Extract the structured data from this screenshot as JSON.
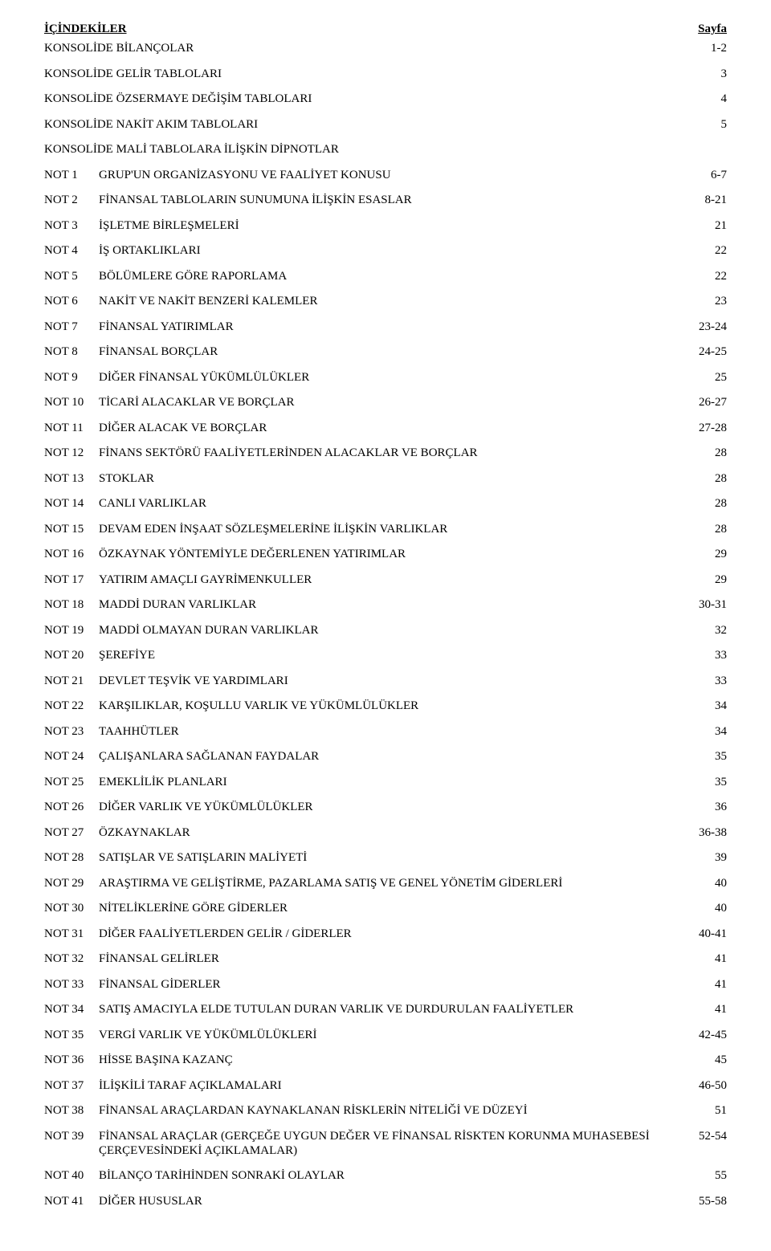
{
  "header": {
    "left": "İÇİNDEKİLER",
    "right": "Sayfa"
  },
  "first_items": [
    {
      "label": "",
      "title": "KONSOLİDE BİLANÇOLAR",
      "page": "1-2"
    },
    {
      "label": "",
      "title": "KONSOLİDE GELİR TABLOLARI",
      "page": "3"
    },
    {
      "label": "",
      "title": "KONSOLİDE ÖZSERMAYE DEĞİŞİM TABLOLARI",
      "page": "4"
    },
    {
      "label": "",
      "title": "KONSOLİDE NAKİT AKIM TABLOLARI",
      "page": "5"
    },
    {
      "label": "",
      "title": "KONSOLİDE MALİ TABLOLARA İLİŞKİN DİPNOTLAR",
      "page": ""
    }
  ],
  "notes": [
    {
      "label": "NOT 1",
      "title": "GRUP'UN ORGANİZASYONU VE FAALİYET KONUSU",
      "page": "6-7"
    },
    {
      "label": "NOT 2",
      "title": "FİNANSAL TABLOLARIN SUNUMUNA İLİŞKİN ESASLAR",
      "page": "8-21"
    },
    {
      "label": "NOT 3",
      "title": "İŞLETME BİRLEŞMELERİ",
      "page": "21"
    },
    {
      "label": "NOT 4",
      "title": "İŞ ORTAKLIKLARI",
      "page": "22"
    },
    {
      "label": "NOT 5",
      "title": "BÖLÜMLERE GÖRE RAPORLAMA",
      "page": "22"
    },
    {
      "label": "NOT 6",
      "title": "NAKİT VE NAKİT BENZERİ KALEMLER",
      "page": "23"
    },
    {
      "label": "NOT 7",
      "title": "FİNANSAL YATIRIMLAR",
      "page": "23-24"
    },
    {
      "label": "NOT 8",
      "title": "FİNANSAL BORÇLAR",
      "page": "24-25"
    },
    {
      "label": "NOT 9",
      "title": "DİĞER FİNANSAL YÜKÜMLÜLÜKLER",
      "page": "25"
    },
    {
      "label": "NOT 10",
      "title": "TİCARİ ALACAKLAR VE BORÇLAR",
      "page": "26-27"
    },
    {
      "label": "NOT 11",
      "title": "DİĞER ALACAK VE BORÇLAR",
      "page": "27-28"
    },
    {
      "label": "NOT 12",
      "title": "FİNANS SEKTÖRÜ FAALİYETLERİNDEN ALACAKLAR VE BORÇLAR",
      "page": "28"
    },
    {
      "label": "NOT 13",
      "title": "STOKLAR",
      "page": "28"
    },
    {
      "label": "NOT 14",
      "title": "CANLI VARLIKLAR",
      "page": "28"
    },
    {
      "label": "NOT 15",
      "title": "DEVAM EDEN İNŞAAT SÖZLEŞMELERİNE İLİŞKİN VARLIKLAR",
      "page": "28"
    },
    {
      "label": "NOT 16",
      "title": "ÖZKAYNAK YÖNTEMİYLE DEĞERLENEN YATIRIMLAR",
      "page": "29"
    },
    {
      "label": "NOT 17",
      "title": "YATIRIM AMAÇLI GAYRİMENKULLER",
      "page": "29"
    },
    {
      "label": "NOT 18",
      "title": "MADDİ DURAN VARLIKLAR",
      "page": "30-31"
    },
    {
      "label": "NOT 19",
      "title": "MADDİ OLMAYAN DURAN VARLIKLAR",
      "page": "32"
    },
    {
      "label": "NOT 20",
      "title": "ŞEREFİYE",
      "page": "33"
    },
    {
      "label": "NOT 21",
      "title": "DEVLET TEŞVİK VE YARDIMLARI",
      "page": "33"
    },
    {
      "label": "NOT 22",
      "title": "KARŞILIKLAR, KOŞULLU VARLIK VE YÜKÜMLÜLÜKLER",
      "page": "34"
    },
    {
      "label": "NOT 23",
      "title": "TAAHHÜTLER",
      "page": "34"
    },
    {
      "label": "NOT 24",
      "title": "ÇALIŞANLARA SAĞLANAN FAYDALAR",
      "page": "35"
    },
    {
      "label": "NOT 25",
      "title": "EMEKLİLİK PLANLARI",
      "page": "35"
    },
    {
      "label": "NOT 26",
      "title": "DİĞER VARLIK VE YÜKÜMLÜLÜKLER",
      "page": "36"
    },
    {
      "label": "NOT 27",
      "title": "ÖZKAYNAKLAR",
      "page": "36-38"
    },
    {
      "label": "NOT 28",
      "title": "SATIŞLAR VE SATIŞLARIN MALİYETİ",
      "page": "39"
    },
    {
      "label": "NOT 29",
      "title": "ARAŞTIRMA VE GELİŞTİRME, PAZARLAMA SATIŞ VE GENEL YÖNETİM GİDERLERİ",
      "page": "40"
    },
    {
      "label": "NOT 30",
      "title": "NİTELİKLERİNE GÖRE GİDERLER",
      "page": "40"
    },
    {
      "label": "NOT 31",
      "title": "DİĞER FAALİYETLERDEN GELİR / GİDERLER",
      "page": "40-41"
    },
    {
      "label": "NOT 32",
      "title": "FİNANSAL GELİRLER",
      "page": "41"
    },
    {
      "label": "NOT 33",
      "title": "FİNANSAL GİDERLER",
      "page": "41"
    },
    {
      "label": "NOT 34",
      "title": "SATIŞ AMACIYLA ELDE TUTULAN DURAN VARLIK VE DURDURULAN FAALİYETLER",
      "page": "41"
    },
    {
      "label": "NOT 35",
      "title": "VERGİ VARLIK VE YÜKÜMLÜLÜKLERİ",
      "page": "42-45"
    },
    {
      "label": "NOT 36",
      "title": "HİSSE BAŞINA KAZANÇ",
      "page": "45"
    },
    {
      "label": "NOT 37",
      "title": "İLİŞKİLİ TARAF AÇIKLAMALARI",
      "page": "46-50"
    },
    {
      "label": "NOT 38",
      "title": "FİNANSAL ARAÇLARDAN KAYNAKLANAN RİSKLERİN NİTELİĞİ VE DÜZEYİ",
      "page": "51"
    },
    {
      "label": "NOT 39",
      "title": "FİNANSAL ARAÇLAR (GERÇEĞE UYGUN DEĞER VE FİNANSAL RİSKTEN KORUNMA MUHASEBESİ ÇERÇEVESİNDEKİ AÇIKLAMALAR)",
      "page": "52-54"
    },
    {
      "label": "NOT 40",
      "title": "BİLANÇO TARİHİNDEN SONRAKİ OLAYLAR",
      "page": "55"
    },
    {
      "label": "NOT 41",
      "title": "DİĞER HUSUSLAR",
      "page": "55-58"
    }
  ]
}
